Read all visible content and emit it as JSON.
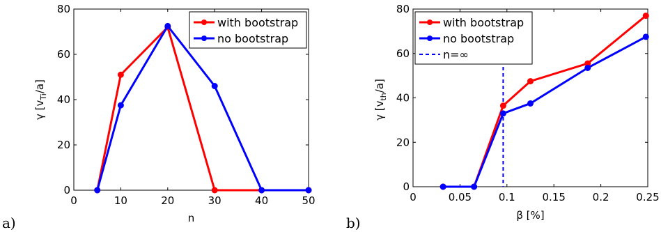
{
  "chart_data": [
    {
      "type": "line",
      "panel_label": "a)",
      "xlabel": "n",
      "ylabel": "γ [v",
      "ylabel_sub": "Ti",
      "ylabel_end": "/a]",
      "xlim": [
        0,
        50
      ],
      "ylim": [
        0,
        80
      ],
      "xticks": [
        0,
        10,
        20,
        30,
        40,
        50
      ],
      "yticks": [
        0,
        20,
        40,
        60,
        80
      ],
      "xtick_labels": [
        "0",
        "10",
        "20",
        "30",
        "40",
        "50"
      ],
      "ytick_labels": [
        "0",
        "20",
        "40",
        "60",
        "80"
      ],
      "grid": false,
      "legend_position": "top-right",
      "series": [
        {
          "name": "with bootstrap",
          "color": "#ff0000",
          "x": [
            5,
            10,
            20,
            30,
            40,
            50
          ],
          "y": [
            0,
            51,
            72,
            0,
            0,
            0
          ]
        },
        {
          "name": "no bootstrap",
          "color": "#0000ff",
          "x": [
            5,
            10,
            20,
            30,
            40,
            50
          ],
          "y": [
            0,
            37.5,
            72.5,
            46,
            0,
            0
          ]
        }
      ]
    },
    {
      "type": "line",
      "panel_label": "b)",
      "xlabel": "β [%]",
      "ylabel": "γ [v",
      "ylabel_sub": "th",
      "ylabel_end": "/a]",
      "xlim": [
        0,
        0.25
      ],
      "ylim": [
        0,
        80
      ],
      "xticks": [
        0,
        0.05,
        0.1,
        0.15,
        0.2,
        0.25
      ],
      "yticks": [
        0,
        20,
        40,
        60,
        80
      ],
      "xtick_labels": [
        "0",
        "0.05",
        "0.1",
        "0.15",
        "0.2",
        "0.25"
      ],
      "ytick_labels": [
        "0",
        "20",
        "40",
        "60",
        "80"
      ],
      "grid": false,
      "legend_position": "top-left",
      "series": [
        {
          "name": "with bootstrap",
          "color": "#ff0000",
          "x": [
            0.032,
            0.065,
            0.096,
            0.125,
            0.186,
            0.248
          ],
          "y": [
            0,
            0,
            36.5,
            47.5,
            55.5,
            77
          ]
        },
        {
          "name": "no bootstrap",
          "color": "#0000ff",
          "x": [
            0.032,
            0.065,
            0.096,
            0.125,
            0.186,
            0.248
          ],
          "y": [
            0,
            0,
            33,
            37.5,
            53.5,
            67.5
          ]
        }
      ],
      "reference_lines": [
        {
          "name": "n=∞",
          "color": "#0000ff",
          "orientation": "vertical",
          "x": 0.096,
          "style": "dashed"
        }
      ]
    }
  ]
}
